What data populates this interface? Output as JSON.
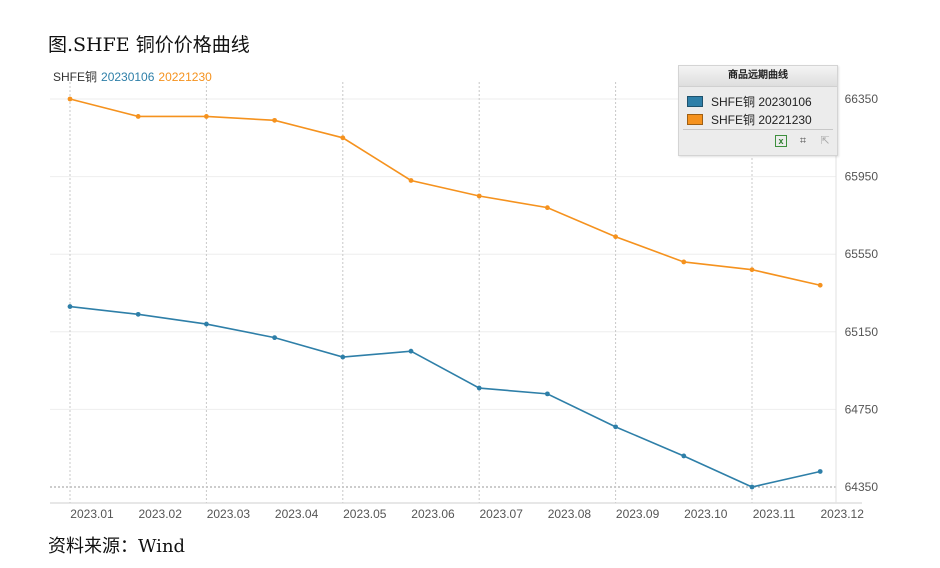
{
  "figure_title": "图.SHFE 铜价价格曲线",
  "source_text": "资料来源：Wind",
  "series_header": {
    "prefix": "SHFE铜",
    "items": [
      "20230106",
      "20221230"
    ]
  },
  "legend": {
    "title": "商品远期曲线",
    "items": [
      {
        "label": "SHFE铜 20230106",
        "color": "#2e7fa8"
      },
      {
        "label": "SHFE铜 20221230",
        "color": "#f5921e"
      }
    ],
    "tools": [
      "excel-export-icon",
      "crop-icon",
      "reset-arrow-icon"
    ]
  },
  "chart_data": {
    "type": "line",
    "x": [
      "2023.01",
      "2023.02",
      "2023.03",
      "2023.04",
      "2023.05",
      "2023.06",
      "2023.07",
      "2023.08",
      "2023.09",
      "2023.10",
      "2023.11",
      "2023.12"
    ],
    "series": [
      {
        "name": "SHFE铜 20230106",
        "color": "#2e7fa8",
        "values": [
          65280,
          65240,
          65190,
          65120,
          65020,
          65050,
          64860,
          64830,
          64660,
          64510,
          64350,
          64430
        ]
      },
      {
        "name": "SHFE铜 20221230",
        "color": "#f5921e",
        "values": [
          66350,
          66260,
          66260,
          66240,
          66150,
          65930,
          65850,
          65790,
          65640,
          65510,
          65470,
          65390
        ]
      }
    ],
    "yticks": [
      64350,
      64750,
      65150,
      65550,
      65950,
      66350
    ],
    "ylim": [
      64350,
      66350
    ],
    "y_axis_position": "right",
    "grid": "dotted vertical at points, faint horizontal",
    "legend_position": "top-right"
  }
}
